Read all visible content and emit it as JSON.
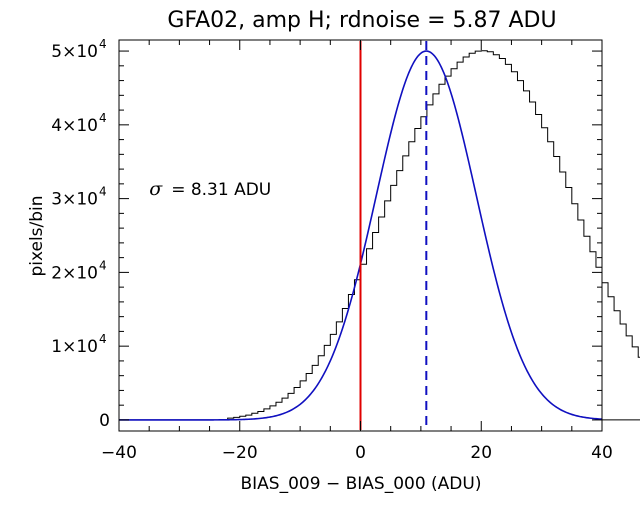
{
  "chart_data": {
    "type": "histogram",
    "title": "GFA02, amp H; rdnoise = 5.87 ADU",
    "xlabel": "BIAS_009 − BIAS_000 (ADU)",
    "ylabel": "pixels/bin",
    "xlim": [
      -40,
      40
    ],
    "ylim": [
      -1500,
      51500
    ],
    "x_ticks": [
      {
        "value": -40,
        "label": "−40"
      },
      {
        "value": -20,
        "label": "−20"
      },
      {
        "value": 0,
        "label": "0"
      },
      {
        "value": 20,
        "label": "20"
      },
      {
        "value": 40,
        "label": "40"
      }
    ],
    "y_ticks": [
      {
        "value": 0,
        "mantissa": "0",
        "exp": ""
      },
      {
        "value": 10000,
        "mantissa": "1×10",
        "exp": "4"
      },
      {
        "value": 20000,
        "mantissa": "2×10",
        "exp": "4"
      },
      {
        "value": 30000,
        "mantissa": "3×10",
        "exp": "4"
      },
      {
        "value": 40000,
        "mantissa": "4×10",
        "exp": "4"
      },
      {
        "value": 50000,
        "mantissa": "5×10",
        "exp": "4"
      }
    ],
    "annotation": {
      "symbol": "σ",
      "text": "= 8.31 ADU",
      "x": -35,
      "y": 30500
    },
    "histogram": {
      "name": "pixel difference histogram",
      "bin_width": 1,
      "bin_start": -22,
      "counts": [
        250,
        350,
        500,
        650,
        900,
        1150,
        1500,
        1900,
        2400,
        2950,
        3600,
        4400,
        5300,
        6300,
        7400,
        8700,
        10100,
        11600,
        13300,
        15100,
        17000,
        19000,
        21100,
        23200,
        25400,
        27500,
        29700,
        31800,
        33800,
        35800,
        37700,
        39500,
        41100,
        42700,
        44200,
        45500,
        46600,
        47600,
        48500,
        49200,
        49700,
        50000,
        50050,
        49900,
        49500,
        49000,
        48200,
        47200,
        46000,
        44600,
        43100,
        41400,
        39600,
        37700,
        35700,
        33600,
        31500,
        29300,
        27100,
        24900,
        22800,
        20700,
        18600,
        16700,
        14800,
        13000,
        11400,
        9900,
        8500,
        7300,
        6200,
        5200,
        4300,
        3500,
        2800,
        2200,
        1700,
        1300,
        950,
        700,
        500,
        350
      ]
    },
    "gaussian_fit": {
      "name": "gaussian fit",
      "color": "#1010c0",
      "mean": 10.9,
      "sigma": 8.31,
      "peak": 50000
    },
    "markers": [
      {
        "name": "zero line",
        "x": 0,
        "color": "#e00000",
        "style": "solid"
      },
      {
        "name": "mean line",
        "x": 10.9,
        "color": "#1010c0",
        "style": "dashed"
      }
    ],
    "grid": false,
    "legend": "none"
  }
}
